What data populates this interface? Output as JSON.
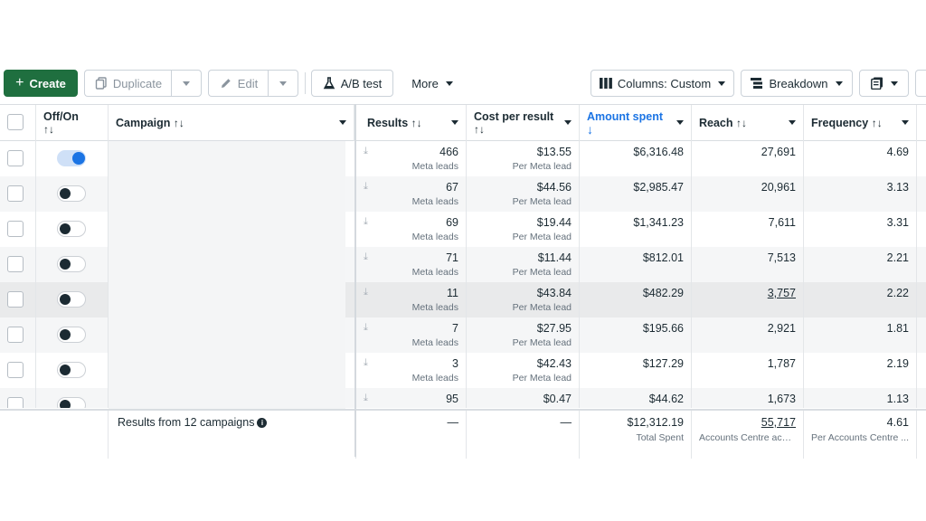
{
  "toolbar": {
    "create": "Create",
    "duplicate": "Duplicate",
    "edit": "Edit",
    "ab_test": "A/B test",
    "more": "More",
    "columns": "Columns: Custom",
    "breakdown": "Breakdown"
  },
  "headers": {
    "off_on": "Off/On",
    "campaign": "Campaign",
    "results": "Results",
    "cost_per_result": "Cost per result",
    "amount_spent": "Amount spent",
    "reach": "Reach",
    "frequency": "Frequency",
    "sort_symbol": "↑↓",
    "sort_down_arrow": "↓"
  },
  "rows": [
    {
      "on": true,
      "results": "466",
      "results_sub": "Meta leads",
      "cpr": "$13.55",
      "cpr_sub": "Per Meta lead",
      "spent": "$6,316.48",
      "reach": "27,691",
      "freq": "4.69"
    },
    {
      "on": false,
      "results": "67",
      "results_sub": "Meta leads",
      "cpr": "$44.56",
      "cpr_sub": "Per Meta lead",
      "spent": "$2,985.47",
      "reach": "20,961",
      "freq": "3.13"
    },
    {
      "on": false,
      "results": "69",
      "results_sub": "Meta leads",
      "cpr": "$19.44",
      "cpr_sub": "Per Meta lead",
      "spent": "$1,341.23",
      "reach": "7,611",
      "freq": "3.31"
    },
    {
      "on": false,
      "results": "71",
      "results_sub": "Meta leads",
      "cpr": "$11.44",
      "cpr_sub": "Per Meta lead",
      "spent": "$812.01",
      "reach": "7,513",
      "freq": "2.21"
    },
    {
      "on": false,
      "results": "11",
      "results_sub": "Meta leads",
      "cpr": "$43.84",
      "cpr_sub": "Per Meta lead",
      "spent": "$482.29",
      "reach": "3,757",
      "freq": "2.22"
    },
    {
      "on": false,
      "results": "7",
      "results_sub": "Meta leads",
      "cpr": "$27.95",
      "cpr_sub": "Per Meta lead",
      "spent": "$195.66",
      "reach": "2,921",
      "freq": "1.81"
    },
    {
      "on": false,
      "results": "3",
      "results_sub": "Meta leads",
      "cpr": "$42.43",
      "cpr_sub": "Per Meta lead",
      "spent": "$127.29",
      "reach": "1,787",
      "freq": "2.19"
    },
    {
      "on": false,
      "results": "95",
      "results_sub": "",
      "cpr": "$0.47",
      "cpr_sub": "",
      "spent": "$44.62",
      "reach": "1,673",
      "freq": "1.13"
    }
  ],
  "footer": {
    "label": "Results from 12 campaigns",
    "results": "—",
    "cpr": "—",
    "spent": "$12,312.19",
    "spent_sub": "Total Spent",
    "reach": "55,717",
    "reach_sub": "Accounts Centre acco...",
    "freq": "4.61",
    "freq_sub": "Per Accounts Centre ..."
  },
  "colors": {
    "create_button": "#1f6f3f",
    "toggle_on": "#1b74e4",
    "active_header": "#1b74e4"
  }
}
